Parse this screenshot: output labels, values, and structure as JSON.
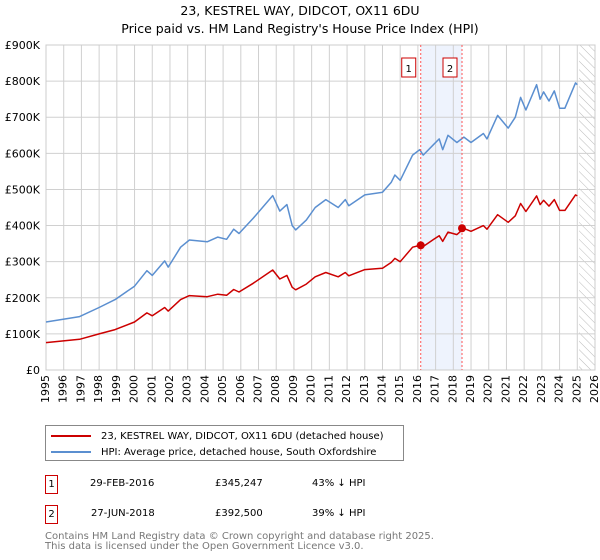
{
  "title_line1": "23, KESTREL WAY, DIDCOT, OX11 6DU",
  "title_line2": "Price paid vs. HM Land Registry's House Price Index (HPI)",
  "legend": {
    "property": "23, KESTREL WAY, DIDCOT, OX11 6DU (detached house)",
    "hpi": "HPI: Average price, detached house, South Oxfordshire"
  },
  "transactions": [
    {
      "num": "1",
      "date": "29-FEB-2016",
      "price": "£345,247",
      "delta": "43% ↓ HPI"
    },
    {
      "num": "2",
      "date": "27-JUN-2018",
      "price": "£392,500",
      "delta": "39% ↓ HPI"
    }
  ],
  "footer_line1": "Contains HM Land Registry data © Crown copyright and database right 2025.",
  "footer_line2": "This data is licensed under the Open Government Licence v3.0.",
  "colors": {
    "property": "#cc0000",
    "hpi": "#5b8fd0",
    "shade": "#eef3fd",
    "marker_border": "#cc0000"
  },
  "chart_data": {
    "type": "line",
    "title": "23, KESTREL WAY, DIDCOT, OX11 6DU — Price paid vs. HM Land Registry's House Price Index (HPI)",
    "xlabel": "",
    "ylabel": "",
    "xlim": [
      1995,
      2026
    ],
    "ylim": [
      0,
      900000
    ],
    "y_ticks": [
      0,
      100000,
      200000,
      300000,
      400000,
      500000,
      600000,
      700000,
      800000,
      900000
    ],
    "y_tick_labels": [
      "£0",
      "£100K",
      "£200K",
      "£300K",
      "£400K",
      "£500K",
      "£600K",
      "£700K",
      "£800K",
      "£900K"
    ],
    "x_ticks": [
      1995,
      1996,
      1997,
      1998,
      1999,
      2000,
      2001,
      2002,
      2003,
      2004,
      2005,
      2006,
      2007,
      2008,
      2009,
      2010,
      2011,
      2012,
      2013,
      2014,
      2015,
      2016,
      2017,
      2018,
      2019,
      2020,
      2021,
      2022,
      2023,
      2024,
      2025,
      2026
    ],
    "x_tick_labels": [
      "1995",
      "1996",
      "1997",
      "1998",
      "1999",
      "2000",
      "2001",
      "2002",
      "2003",
      "2004",
      "2005",
      "2006",
      "2007",
      "2008",
      "2009",
      "2010",
      "2011",
      "2012",
      "2013",
      "2014",
      "2015",
      "2016",
      "2017",
      "2018",
      "2019",
      "2020",
      "2021",
      "2022",
      "2023",
      "2024",
      "2025",
      "2026"
    ],
    "grid": true,
    "x": [
      1995,
      1996.9,
      1998,
      1998.9,
      2000,
      2000.7,
      2001,
      2001.7,
      2001.9,
      2002.6,
      2003.1,
      2004.1,
      2004.7,
      2005.2,
      2005.6,
      2005.9,
      2006.7,
      2007.8,
      2008.2,
      2008.6,
      2008.9,
      2009.1,
      2009.7,
      2010.2,
      2010.8,
      2011.5,
      2011.9,
      2012.1,
      2013,
      2014,
      2014.5,
      2014.7,
      2015,
      2015.7,
      2016.1,
      2016.3,
      2016.9,
      2017.2,
      2017.4,
      2017.7,
      2018.2,
      2018.6,
      2019,
      2019.7,
      2019.9,
      2020.5,
      2021.1,
      2021.5,
      2021.8,
      2022.1,
      2022.7,
      2022.9,
      2023.1,
      2023.4,
      2023.7,
      2024,
      2024.3,
      2024.9,
      2025
    ],
    "series": [
      {
        "name": "23, KESTREL WAY, DIDCOT, OX11 6DU (detached house)",
        "color": "#cc0000",
        "values": [
          76000,
          85000,
          100000,
          112000,
          133000,
          158000,
          150000,
          173000,
          163000,
          195000,
          206000,
          203000,
          210000,
          207000,
          223000,
          216000,
          240000,
          277000,
          252000,
          262000,
          229000,
          222000,
          238000,
          258000,
          270000,
          258000,
          270000,
          261000,
          278000,
          282000,
          298000,
          309000,
          300000,
          340000,
          345000,
          342000,
          362000,
          372000,
          356000,
          382000,
          375000,
          392000,
          384000,
          400000,
          390000,
          430000,
          409000,
          427000,
          461000,
          439000,
          482000,
          458000,
          470000,
          454000,
          472000,
          442000,
          442000,
          485000,
          482000
        ]
      },
      {
        "name": "HPI: Average price, detached house, South Oxfordshire",
        "color": "#5b8fd0",
        "values": [
          133000,
          148000,
          173000,
          195000,
          232000,
          275000,
          262000,
          302000,
          285000,
          340000,
          360000,
          355000,
          368000,
          362000,
          390000,
          378000,
          420000,
          483000,
          440000,
          458000,
          400000,
          388000,
          415000,
          450000,
          472000,
          450000,
          472000,
          455000,
          485000,
          492000,
          520000,
          540000,
          525000,
          595000,
          610000,
          595000,
          625000,
          640000,
          610000,
          650000,
          630000,
          645000,
          630000,
          655000,
          640000,
          705000,
          670000,
          700000,
          755000,
          720000,
          790000,
          750000,
          770000,
          745000,
          773000,
          725000,
          725000,
          795000,
          790000
        ]
      }
    ],
    "sales": [
      {
        "label": "1",
        "x": 2016.16,
        "value": 345247
      },
      {
        "label": "2",
        "x": 2018.49,
        "value": 392500
      }
    ],
    "shaded_range": [
      2016.16,
      2018.49
    ],
    "forecast_hatch_from": 2025.1
  }
}
